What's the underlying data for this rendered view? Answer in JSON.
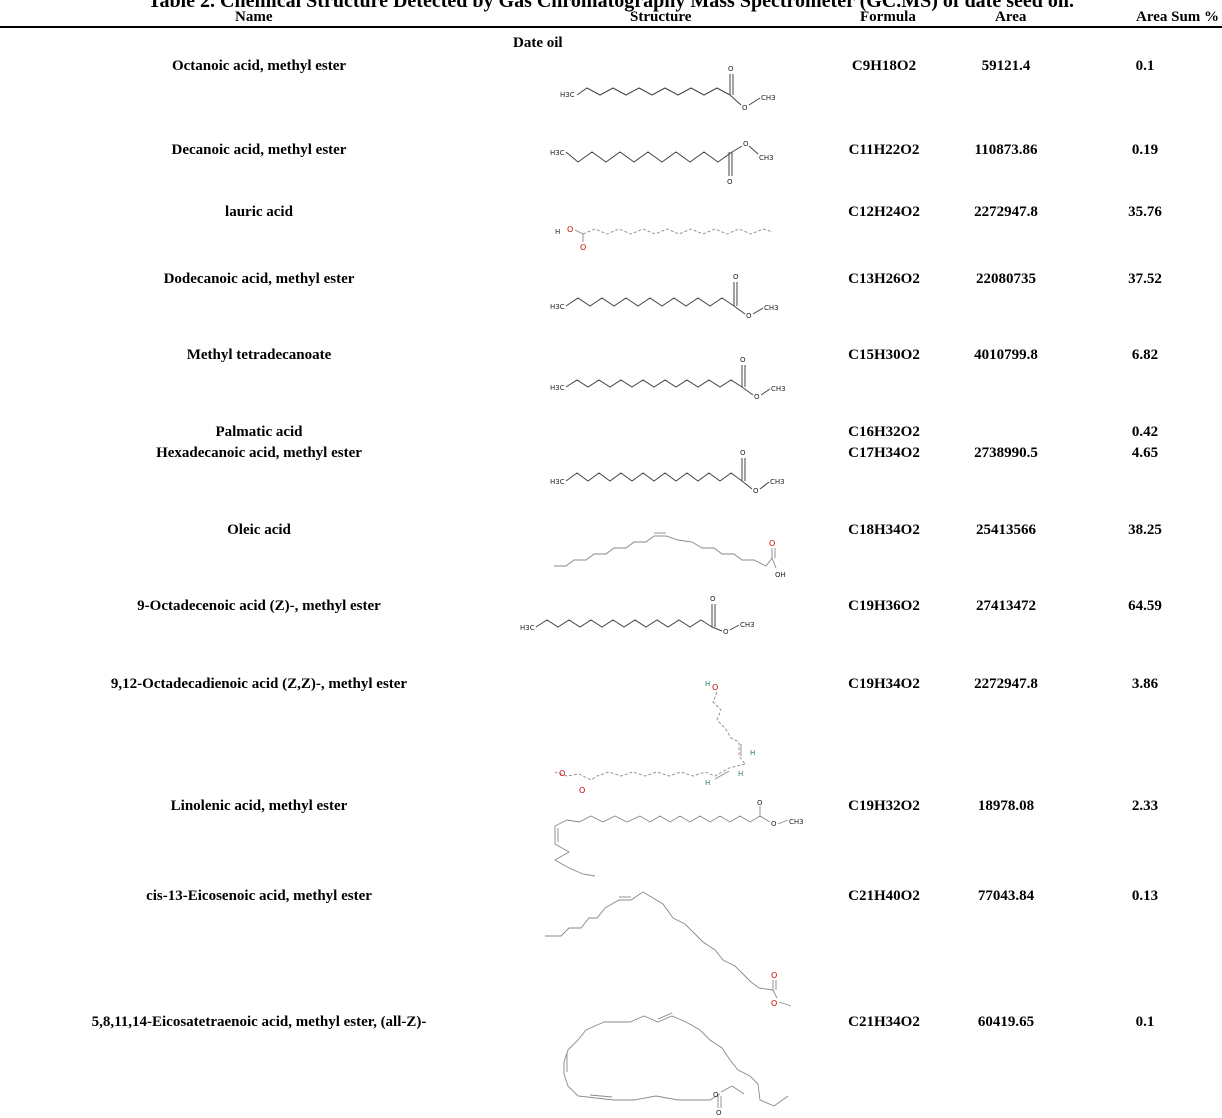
{
  "caption": "Table 2. Chemical Structure Detected by Gas Chromatography Mass Spectrometer (GC.MS) of date seed oil.",
  "headers": {
    "name": "Name",
    "structure": "Structure",
    "formula": "Formula",
    "area": "Area",
    "area_sum": "Area Sum %"
  },
  "group_label": "Date oil",
  "rows": [
    {
      "name": "Octanoic acid, methyl ester",
      "formula": "C9H18O2",
      "area": "59121.4",
      "area_sum": "0.1"
    },
    {
      "name": "Decanoic acid, methyl ester",
      "formula": "C11H22O2",
      "area": "110873.86",
      "area_sum": "0.19"
    },
    {
      "name": "lauric acid",
      "formula": "C12H24O2",
      "area": "2272947.8",
      "area_sum": "35.76"
    },
    {
      "name": "Dodecanoic acid, methyl ester",
      "formula": "C13H26O2",
      "area": "22080735",
      "area_sum": "37.52"
    },
    {
      "name": "Methyl tetradecanoate",
      "formula": "C15H30O2",
      "area": "4010799.8",
      "area_sum": "6.82"
    },
    {
      "name": "Palmatic acid",
      "formula": "C16H32O2",
      "area": "",
      "area_sum": "0.42"
    },
    {
      "name": "Hexadecanoic acid, methyl ester",
      "formula": "C17H34O2",
      "area": "2738990.5",
      "area_sum": "4.65"
    },
    {
      "name": "Oleic acid",
      "formula": "C18H34O2",
      "area": "25413566",
      "area_sum": "38.25"
    },
    {
      "name": "9-Octadecenoic acid (Z)-, methyl ester",
      "formula": "C19H36O2",
      "area": "27413472",
      "area_sum": "64.59"
    },
    {
      "name": "9,12-Octadecadienoic acid (Z,Z)-, methyl ester",
      "formula": "C19H34O2",
      "area": "2272947.8",
      "area_sum": "3.86"
    },
    {
      "name": "Linolenic acid, methyl ester",
      "formula": "C19H32O2",
      "area": "18978.08",
      "area_sum": "2.33"
    },
    {
      "name": "cis-13-Eicosenoic acid, methyl ester",
      "formula": "C21H40O2",
      "area": "77043.84",
      "area_sum": "0.13"
    },
    {
      "name": "5,8,11,14-Eicosatetraenoic acid, methyl ester, (all-Z)-",
      "formula": "C21H34O2",
      "area": "60419.65",
      "area_sum": "0.1"
    }
  ],
  "structure_labels": {
    "h3c": "H3C",
    "ch3": "CH3",
    "o": "O",
    "h": "H",
    "oh": "OH"
  }
}
